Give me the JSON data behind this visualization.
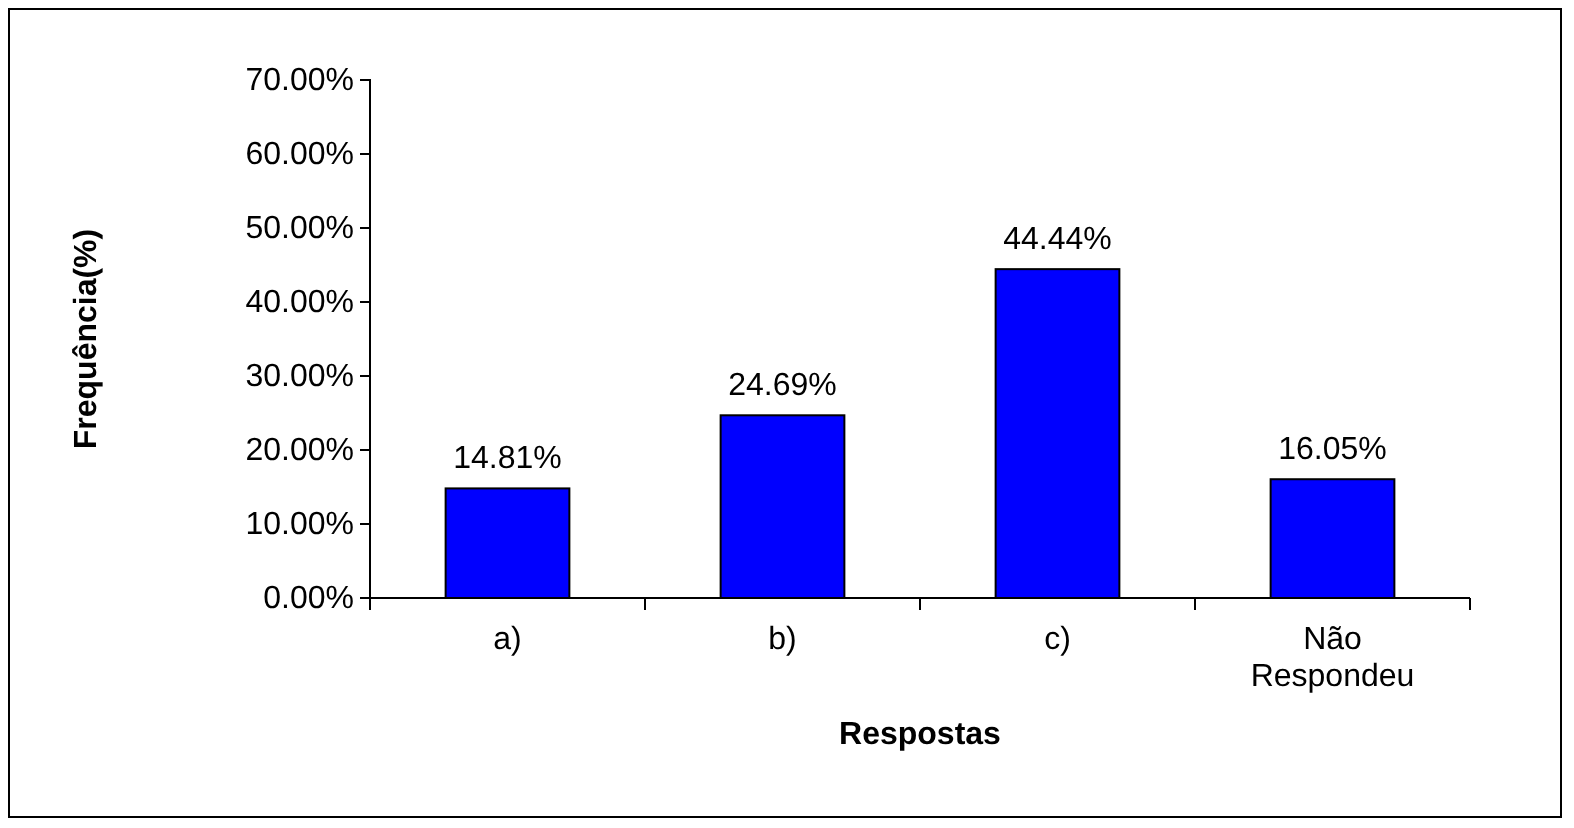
{
  "chart_data": {
    "type": "bar",
    "xlabel": "Respostas",
    "ylabel": "Frequência(%)",
    "categories": [
      "a)",
      "b)",
      "c)",
      "Não Respondeu"
    ],
    "values": [
      14.81,
      24.69,
      44.44,
      16.05
    ],
    "value_labels": [
      "14.81%",
      "24.69%",
      "44.44%",
      "16.05%"
    ],
    "color": "#0000ff",
    "ylim": [
      0,
      70
    ],
    "yticks": [
      {
        "value": 0,
        "label": "0.00%"
      },
      {
        "value": 10,
        "label": "10.00%"
      },
      {
        "value": 20,
        "label": "20.00%"
      },
      {
        "value": 30,
        "label": "30.00%"
      },
      {
        "value": 40,
        "label": "40.00%"
      },
      {
        "value": 50,
        "label": "50.00%"
      },
      {
        "value": 60,
        "label": "60.00%"
      },
      {
        "value": 70,
        "label": "70.00%"
      }
    ],
    "grid": false
  }
}
